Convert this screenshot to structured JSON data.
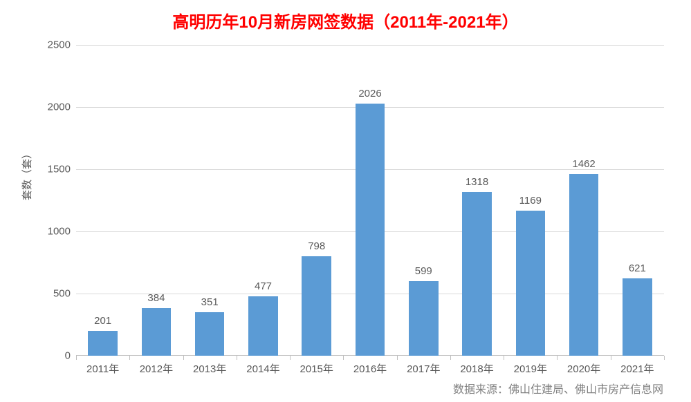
{
  "chart": {
    "type": "bar",
    "title": "高明历年10月新房网签数据（2011年-2021年）",
    "title_color": "#ff0000",
    "title_fontsize": 24,
    "background_color": "#ffffff",
    "ylabel": "套数（套）",
    "ylabel_fontsize": 15,
    "ylim_min": 0,
    "ylim_max": 2500,
    "ytick_step": 500,
    "yticks": [
      0,
      500,
      1000,
      1500,
      2000,
      2500
    ],
    "grid_color": "#d9d9d9",
    "axis_color": "#bfbfbf",
    "tick_label_color": "#595959",
    "tick_label_fontsize": 15,
    "bar_color": "#5b9bd5",
    "bar_width_ratio": 0.55,
    "data_label_color": "#595959",
    "data_label_fontsize": 15,
    "categories": [
      "2011年",
      "2012年",
      "2013年",
      "2014年",
      "2015年",
      "2016年",
      "2017年",
      "2018年",
      "2019年",
      "2020年",
      "2021年"
    ],
    "values": [
      201,
      384,
      351,
      477,
      798,
      2026,
      599,
      1318,
      1169,
      1462,
      621
    ],
    "source": "数据来源：佛山住建局、佛山市房产信息网",
    "source_color": "#808080",
    "source_fontsize": 16
  }
}
